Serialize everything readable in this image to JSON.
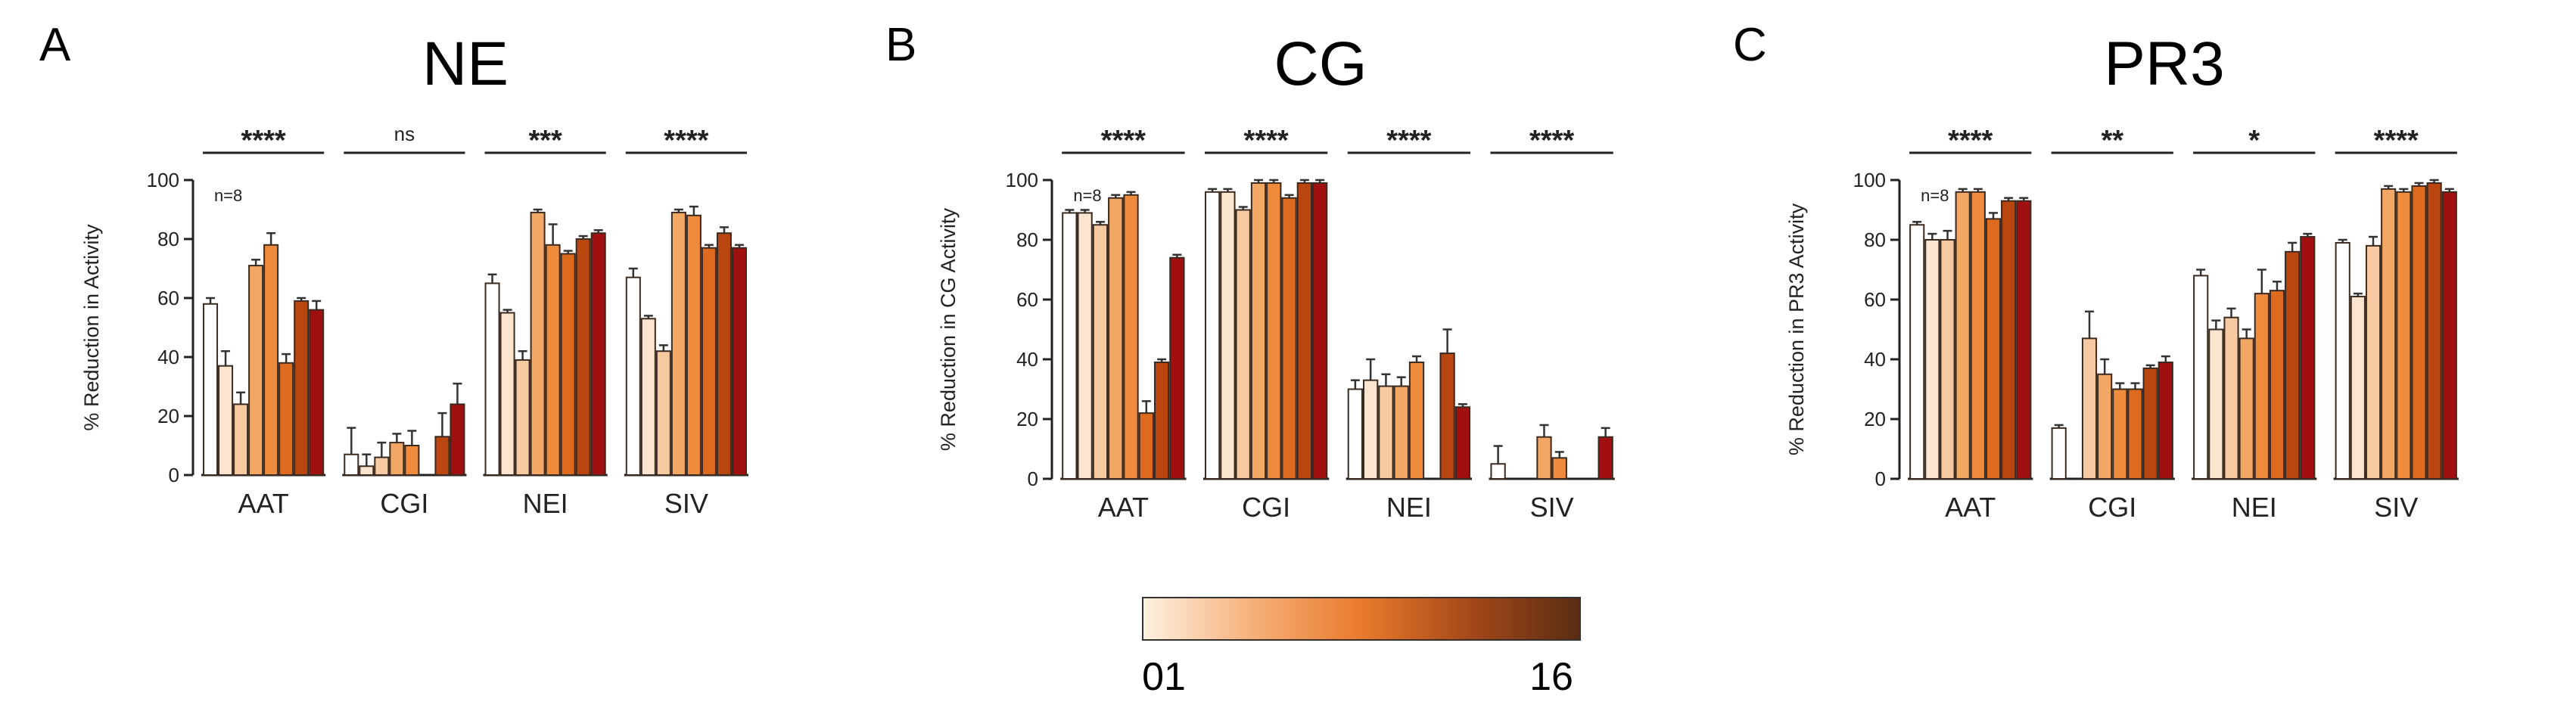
{
  "panels": [
    {
      "letter": "A",
      "title": "NE"
    },
    {
      "letter": "B",
      "title": "CG"
    },
    {
      "letter": "C",
      "title": "PR3"
    }
  ],
  "colorbar": {
    "min_label": "01",
    "max_label": "16",
    "colors": [
      "#fdf1e1",
      "#f6b07a",
      "#e97a2b",
      "#a4481a",
      "#5a2c12"
    ]
  },
  "chart_data": [
    {
      "type": "bar",
      "panel": "A",
      "title": "NE",
      "xlabel": "",
      "ylabel": "% Reduction in Activity",
      "ylim": [
        0,
        100
      ],
      "yticks": [
        0,
        20,
        40,
        60,
        80,
        100
      ],
      "grid": false,
      "categories": [
        "AAT",
        "CGI",
        "NEI",
        "SIV"
      ],
      "annotation": "n=8",
      "significance": [
        "****",
        "ns",
        "***",
        "****"
      ],
      "bar_colors": [
        "#ffffff",
        "#fbe5cf",
        "#f6c9a0",
        "#f2a765",
        "#ee8b3c",
        "#dd6a1e",
        "#b8460e",
        "#a01010"
      ],
      "groups": [
        {
          "values": [
            58,
            37,
            24,
            71,
            78,
            38,
            59,
            56
          ],
          "errors": [
            2,
            5,
            4,
            2,
            4,
            3,
            1,
            3
          ]
        },
        {
          "values": [
            7,
            3,
            6,
            11,
            10,
            0,
            13,
            24
          ],
          "errors": [
            9,
            4,
            5,
            3,
            5,
            0,
            8,
            7
          ]
        },
        {
          "values": [
            65,
            55,
            39,
            89,
            78,
            75,
            80,
            82
          ],
          "errors": [
            3,
            1,
            3,
            1,
            7,
            1,
            1,
            1
          ]
        },
        {
          "values": [
            67,
            53,
            42,
            89,
            88,
            77,
            82,
            77
          ],
          "errors": [
            3,
            1,
            2,
            1,
            3,
            1,
            2,
            1
          ]
        }
      ]
    },
    {
      "type": "bar",
      "panel": "B",
      "title": "CG",
      "xlabel": "",
      "ylabel": "% Reduction in CG Activity",
      "ylim": [
        0,
        100
      ],
      "yticks": [
        0,
        20,
        40,
        60,
        80,
        100
      ],
      "grid": false,
      "categories": [
        "AAT",
        "CGI",
        "NEI",
        "SIV"
      ],
      "annotation": "n=8",
      "significance": [
        "****",
        "****",
        "****",
        "****"
      ],
      "bar_colors": [
        "#ffffff",
        "#fbe5cf",
        "#f6c9a0",
        "#f2a765",
        "#ee8b3c",
        "#dd6a1e",
        "#b8460e",
        "#a01010"
      ],
      "groups": [
        {
          "values": [
            89,
            89,
            85,
            94,
            95,
            22,
            39,
            74
          ],
          "errors": [
            1,
            1,
            1,
            1,
            1,
            4,
            1,
            1
          ]
        },
        {
          "values": [
            96,
            96,
            90,
            99,
            99,
            94,
            99,
            99
          ],
          "errors": [
            1,
            1,
            1,
            1,
            1,
            1,
            1,
            1
          ]
        },
        {
          "values": [
            30,
            33,
            31,
            31,
            39,
            0,
            42,
            24
          ],
          "errors": [
            3,
            7,
            4,
            3,
            2,
            0,
            8,
            1
          ]
        },
        {
          "values": [
            5,
            0,
            0,
            14,
            7,
            0,
            0,
            14
          ],
          "errors": [
            6,
            0,
            0,
            4,
            2,
            0,
            0,
            3
          ]
        }
      ]
    },
    {
      "type": "bar",
      "panel": "C",
      "title": "PR3",
      "xlabel": "",
      "ylabel": "% Reduction in PR3 Activity",
      "ylim": [
        0,
        100
      ],
      "yticks": [
        0,
        20,
        40,
        60,
        80,
        100
      ],
      "grid": false,
      "categories": [
        "AAT",
        "CGI",
        "NEI",
        "SIV"
      ],
      "annotation": "n=8",
      "significance": [
        "****",
        "**",
        "*",
        "****"
      ],
      "bar_colors": [
        "#ffffff",
        "#fbe5cf",
        "#f6c9a0",
        "#f2a765",
        "#ee8b3c",
        "#dd6a1e",
        "#b8460e",
        "#a01010"
      ],
      "groups": [
        {
          "values": [
            85,
            80,
            80,
            96,
            96,
            87,
            93,
            93
          ],
          "errors": [
            1,
            2,
            3,
            1,
            1,
            2,
            1,
            1
          ]
        },
        {
          "values": [
            17,
            0,
            47,
            35,
            30,
            30,
            37,
            39
          ],
          "errors": [
            1,
            0,
            9,
            5,
            2,
            2,
            1,
            2
          ]
        },
        {
          "values": [
            68,
            50,
            54,
            47,
            62,
            63,
            76,
            81
          ],
          "errors": [
            2,
            3,
            3,
            3,
            8,
            3,
            3,
            1
          ]
        },
        {
          "values": [
            79,
            61,
            78,
            97,
            96,
            98,
            99,
            96
          ],
          "errors": [
            1,
            1,
            3,
            1,
            1,
            1,
            1,
            1
          ]
        }
      ]
    }
  ]
}
